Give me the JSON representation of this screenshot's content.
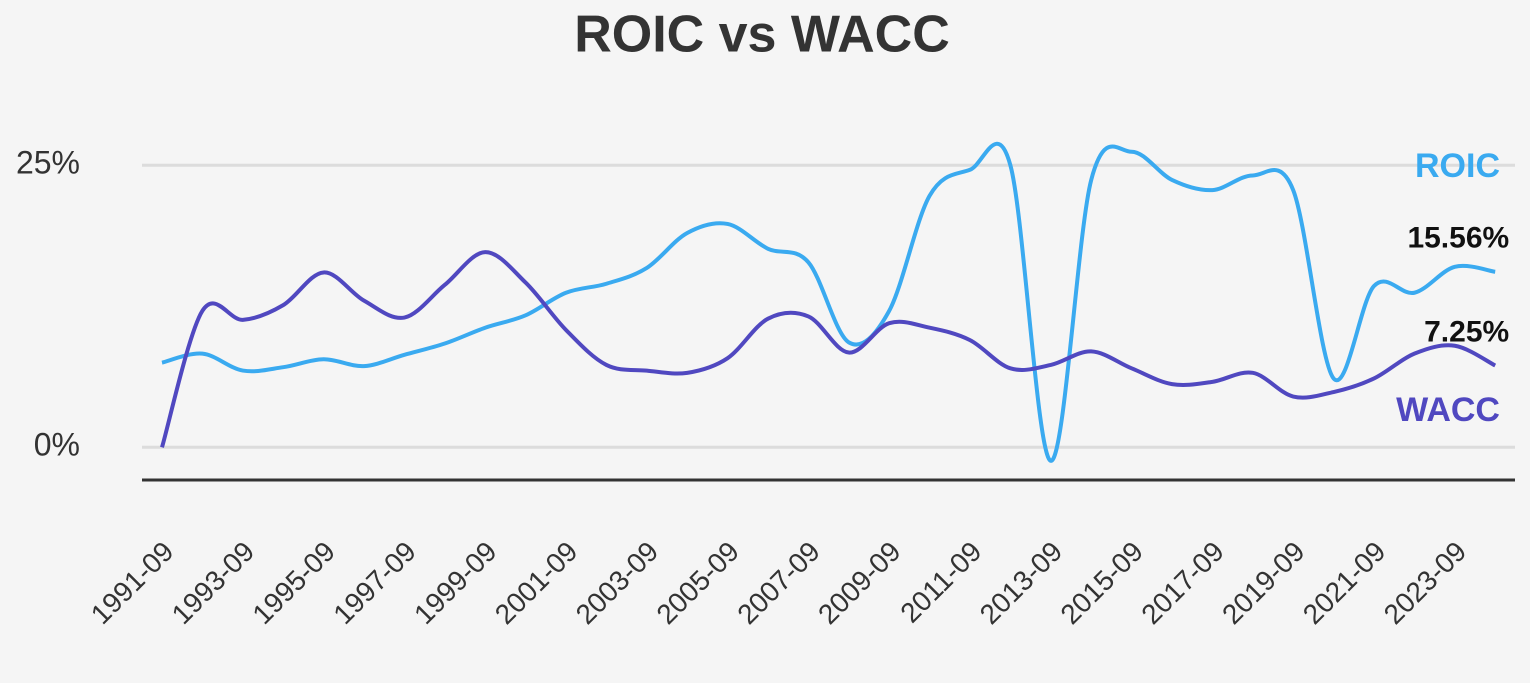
{
  "chart_data": {
    "type": "line",
    "title": "ROIC vs WACC",
    "categories": [
      "1991-09",
      null,
      "1993-09",
      null,
      "1995-09",
      null,
      "1997-09",
      null,
      "1999-09",
      null,
      "2001-09",
      null,
      "2003-09",
      null,
      "2005-09",
      null,
      "2007-09",
      null,
      "2009-09",
      null,
      "2011-09",
      null,
      "2013-09",
      null,
      "2015-09",
      null,
      "2017-09",
      null,
      "2019-09",
      null,
      "2021-09",
      null,
      "2023-09",
      null
    ],
    "series": [
      {
        "name": "ROIC",
        "color": "#3aaaf0",
        "values": [
          7.5,
          8.3,
          6.8,
          7.1,
          7.8,
          7.2,
          8.2,
          9.2,
          10.6,
          11.7,
          13.7,
          14.5,
          15.9,
          19.0,
          19.8,
          17.6,
          16.4,
          9.3,
          12.1,
          22.3,
          24.6,
          25.0,
          -1.2,
          23.7,
          26.2,
          23.7,
          22.8,
          24.1,
          22.8,
          6.1,
          14.3,
          13.7,
          16.0,
          15.56
        ],
        "value_labels": [
          null,
          null,
          null,
          null,
          null,
          null,
          null,
          null,
          null,
          null,
          null,
          null,
          null,
          null,
          null,
          null,
          null,
          null,
          null,
          null,
          null,
          null,
          null,
          null,
          null,
          null,
          null,
          null,
          null,
          null,
          null,
          null,
          null,
          "15.56%"
        ]
      },
      {
        "name": "WACC",
        "color": "#5048c0",
        "values": [
          0,
          12.1,
          11.3,
          12.6,
          15.5,
          13.0,
          11.5,
          14.4,
          17.3,
          14.6,
          10.4,
          7.3,
          6.8,
          6.6,
          7.9,
          11.4,
          11.6,
          8.4,
          11.0,
          10.6,
          9.5,
          7.0,
          7.3,
          8.5,
          7.0,
          5.6,
          5.8,
          6.6,
          4.5,
          4.9,
          6.1,
          8.3,
          9.0,
          7.25
        ],
        "value_labels": [
          null,
          null,
          null,
          null,
          null,
          null,
          null,
          null,
          null,
          null,
          null,
          null,
          null,
          null,
          null,
          null,
          null,
          null,
          null,
          null,
          null,
          null,
          null,
          null,
          null,
          null,
          null,
          null,
          null,
          null,
          null,
          null,
          null,
          "7.25%"
        ]
      }
    ],
    "ylim": [
      -2.9,
      30
    ],
    "yticks": [
      {
        "value": 0,
        "label": "0%"
      },
      {
        "value": 25,
        "label": "25%"
      }
    ],
    "grid": true
  }
}
